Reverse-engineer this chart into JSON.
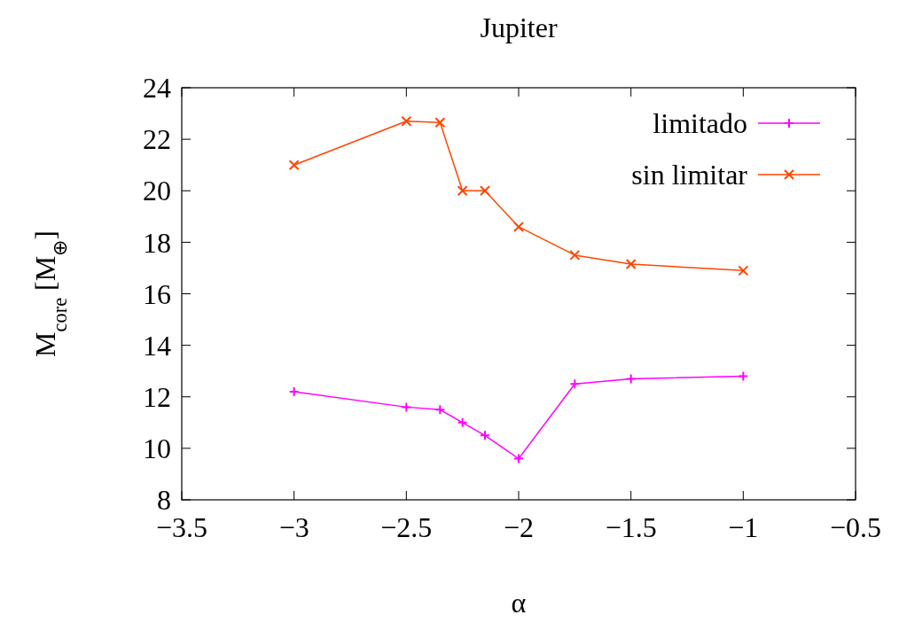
{
  "chart_data": {
    "type": "line",
    "title": "Jupiter",
    "xlabel": "α",
    "ylabel": "M$_{core}$ [M$_{⊕}$]",
    "x": [
      -3,
      -2.5,
      -2.35,
      -2.25,
      -2.15,
      -2,
      -1.75,
      -1.5,
      -1
    ],
    "series": [
      {
        "name": "limitado",
        "color": "#ff00ff",
        "marker": "cross",
        "values": [
          12.2,
          11.6,
          11.5,
          11.0,
          10.5,
          9.6,
          12.5,
          12.7,
          12.8
        ]
      },
      {
        "name": "sin limitar",
        "color": "#ff4500",
        "marker": "x",
        "values": [
          21.0,
          22.7,
          22.65,
          20.0,
          20.0,
          18.6,
          17.5,
          17.15,
          16.9
        ]
      }
    ],
    "xlim": [
      -3.5,
      -0.5
    ],
    "xticks": [
      {
        "value": -3.5,
        "label": "−3.5"
      },
      {
        "value": -3,
        "label": "−3"
      },
      {
        "value": -2.5,
        "label": "−2.5"
      },
      {
        "value": -2,
        "label": "−2"
      },
      {
        "value": -1.5,
        "label": "−1.5"
      },
      {
        "value": -1,
        "label": "−1"
      },
      {
        "value": -0.5,
        "label": "−0.5"
      }
    ],
    "ylim": [
      8,
      24
    ],
    "yticks": [
      8,
      10,
      12,
      14,
      16,
      18,
      20,
      22,
      24
    ],
    "grid": false,
    "legend": "top right",
    "line_style": "solid"
  }
}
